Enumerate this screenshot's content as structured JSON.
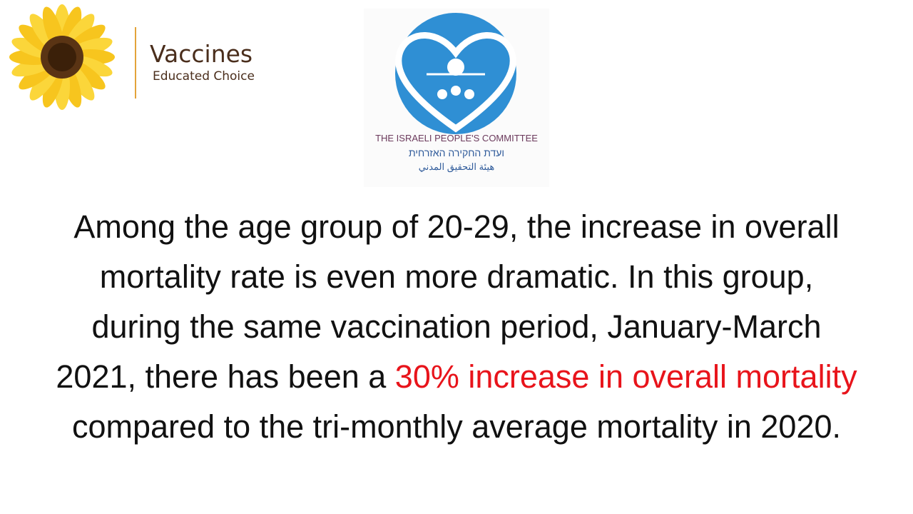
{
  "brand": {
    "name": "Vaccines",
    "tagline": "Educated Choice"
  },
  "committee": {
    "english": "THE ISRAELI PEOPLE'S COMMITTEE",
    "hebrew": "ועדת החקירה האזרחית",
    "arabic": "هيئة التحقيق المدني"
  },
  "body": {
    "lines": [
      [
        {
          "text": "Among the age group of 20-29, the increase in overall",
          "color": "#111111"
        }
      ],
      [
        {
          "text": "mortality rate is even more dramatic. In this group,",
          "color": "#111111"
        }
      ],
      [
        {
          "text": "during the same vaccination period, January-March",
          "color": "#111111"
        }
      ],
      [
        {
          "text": "2021, there has been a ",
          "color": "#111111"
        },
        {
          "text": "30% increase in overall mortality",
          "color": "#e8141b"
        }
      ],
      [
        {
          "text": "compared to the tri-monthly average mortality in 2020.",
          "color": "#111111"
        }
      ]
    ]
  }
}
